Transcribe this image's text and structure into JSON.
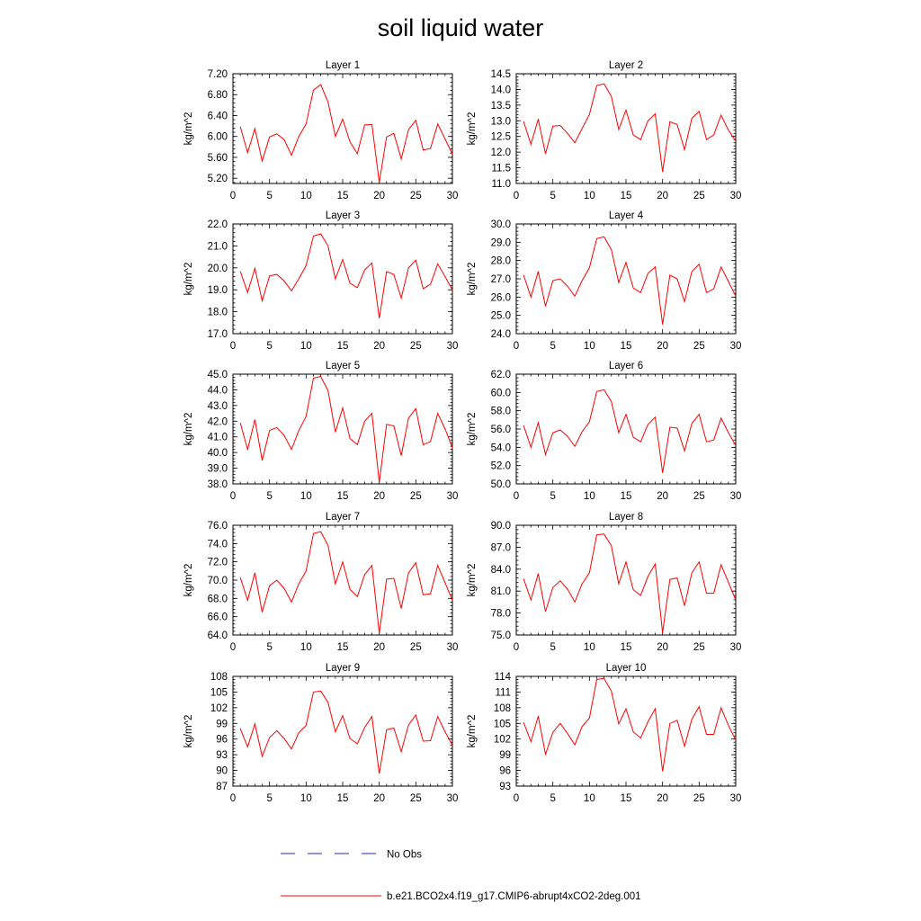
{
  "title": "soil liquid water",
  "legend": {
    "placement": "bottom-center",
    "obs_label": "No Obs",
    "obs_color": "#2a2aa0",
    "model_label": "b.e21.BCO2x4.f19_g17.CMIP6-abrupt4xCO2-2deg.001",
    "model_color": "#ff0000"
  },
  "chart_data": [
    {
      "type": "line",
      "title": "Layer 1",
      "ylabel": "kg/m^2",
      "xlim": [
        0,
        30
      ],
      "ylim": [
        5.1,
        7.2
      ],
      "yticks": [
        "5.20",
        "5.60",
        "6.00",
        "6.40",
        "6.80",
        "7.20"
      ],
      "ytick_values": [
        5.2,
        5.6,
        6.0,
        6.4,
        6.8,
        7.2
      ],
      "xticks": [
        "0",
        "5",
        "10",
        "15",
        "20",
        "25",
        "30"
      ],
      "xtick_values": [
        0,
        5,
        10,
        15,
        20,
        25,
        30
      ],
      "x": [
        1,
        2,
        3,
        4,
        5,
        6,
        7,
        8,
        9,
        10,
        11,
        12,
        13,
        14,
        15,
        16,
        17,
        18,
        19,
        20,
        21,
        22,
        23,
        24,
        25,
        26,
        27,
        28,
        29,
        30
      ],
      "series": [
        {
          "name": "b.e21.BCO2x4.f19_g17.CMIP6-abrupt4xCO2-2deg.001",
          "color": "#ff0000",
          "values": [
            6.19,
            5.69,
            6.15,
            5.53,
            5.99,
            6.05,
            5.94,
            5.64,
            6.0,
            6.24,
            6.89,
            6.99,
            6.66,
            6.0,
            6.33,
            5.9,
            5.67,
            6.22,
            6.23,
            5.12,
            5.99,
            6.06,
            5.57,
            6.13,
            6.31,
            5.74,
            5.77,
            6.24,
            5.95,
            5.66
          ]
        }
      ]
    },
    {
      "type": "line",
      "title": "Layer 2",
      "ylabel": "kg/m^2",
      "xlim": [
        0,
        30
      ],
      "ylim": [
        11.0,
        14.5
      ],
      "yticks": [
        "11.0",
        "11.5",
        "12.0",
        "12.5",
        "13.0",
        "13.5",
        "14.0",
        "14.5"
      ],
      "ytick_values": [
        11.0,
        11.5,
        12.0,
        12.5,
        13.0,
        13.5,
        14.0,
        14.5
      ],
      "xticks": [
        "0",
        "5",
        "10",
        "15",
        "20",
        "25",
        "30"
      ],
      "xtick_values": [
        0,
        5,
        10,
        15,
        20,
        25,
        30
      ],
      "x": [
        1,
        2,
        3,
        4,
        5,
        6,
        7,
        8,
        9,
        10,
        11,
        12,
        13,
        14,
        15,
        16,
        17,
        18,
        19,
        20,
        21,
        22,
        23,
        24,
        25,
        26,
        27,
        28,
        29,
        30
      ],
      "series": [
        {
          "name": "b.e21.BCO2x4.f19_g17.CMIP6-abrupt4xCO2-2deg.001",
          "color": "#ff0000",
          "values": [
            12.98,
            12.25,
            13.05,
            11.95,
            12.83,
            12.85,
            12.6,
            12.3,
            12.75,
            13.2,
            14.12,
            14.18,
            13.78,
            12.72,
            13.34,
            12.55,
            12.4,
            13.0,
            13.22,
            11.37,
            12.97,
            12.88,
            12.08,
            13.08,
            13.3,
            12.4,
            12.55,
            13.18,
            12.7,
            12.35
          ]
        }
      ]
    },
    {
      "type": "line",
      "title": "Layer 3",
      "ylabel": "kg/m^2",
      "xlim": [
        0,
        30
      ],
      "ylim": [
        17.0,
        22.0
      ],
      "yticks": [
        "17.0",
        "18.0",
        "19.0",
        "20.0",
        "21.0",
        "22.0"
      ],
      "ytick_values": [
        17,
        18,
        19,
        20,
        21,
        22
      ],
      "xticks": [
        "0",
        "5",
        "10",
        "15",
        "20",
        "25",
        "30"
      ],
      "xtick_values": [
        0,
        5,
        10,
        15,
        20,
        25,
        30
      ],
      "x": [
        1,
        2,
        3,
        4,
        5,
        6,
        7,
        8,
        9,
        10,
        11,
        12,
        13,
        14,
        15,
        16,
        17,
        18,
        19,
        20,
        21,
        22,
        23,
        24,
        25,
        26,
        27,
        28,
        29,
        30
      ],
      "series": [
        {
          "name": "b.e21.BCO2x4.f19_g17.CMIP6-abrupt4xCO2-2deg.001",
          "color": "#ff0000",
          "values": [
            19.85,
            18.88,
            19.98,
            18.5,
            19.63,
            19.7,
            19.4,
            18.95,
            19.5,
            20.1,
            21.45,
            21.55,
            21.0,
            19.5,
            20.38,
            19.3,
            19.1,
            19.9,
            20.22,
            17.7,
            19.83,
            19.7,
            18.62,
            20.0,
            20.35,
            19.05,
            19.25,
            20.18,
            19.6,
            19.0
          ]
        }
      ]
    },
    {
      "type": "line",
      "title": "Layer 4",
      "ylabel": "kg/m^2",
      "xlim": [
        0,
        30
      ],
      "ylim": [
        24.0,
        30.0
      ],
      "yticks": [
        "24.0",
        "25.0",
        "26.0",
        "27.0",
        "28.0",
        "29.0",
        "30.0"
      ],
      "ytick_values": [
        24,
        25,
        26,
        27,
        28,
        29,
        30
      ],
      "xticks": [
        "0",
        "5",
        "10",
        "15",
        "20",
        "25",
        "30"
      ],
      "xtick_values": [
        0,
        5,
        10,
        15,
        20,
        25,
        30
      ],
      "x": [
        1,
        2,
        3,
        4,
        5,
        6,
        7,
        8,
        9,
        10,
        11,
        12,
        13,
        14,
        15,
        16,
        17,
        18,
        19,
        20,
        21,
        22,
        23,
        24,
        25,
        26,
        27,
        28,
        29,
        30
      ],
      "series": [
        {
          "name": "b.e21.BCO2x4.f19_g17.CMIP6-abrupt4xCO2-2deg.001",
          "color": "#ff0000",
          "values": [
            27.2,
            26.0,
            27.4,
            25.5,
            26.9,
            27.0,
            26.6,
            26.05,
            26.9,
            27.6,
            29.2,
            29.3,
            28.6,
            26.8,
            27.9,
            26.5,
            26.25,
            27.3,
            27.65,
            24.5,
            27.2,
            27.0,
            25.75,
            27.4,
            27.8,
            26.25,
            26.45,
            27.65,
            26.85,
            26.05
          ]
        }
      ]
    },
    {
      "type": "line",
      "title": "Layer 5",
      "ylabel": "kg/m^2",
      "xlim": [
        0,
        30
      ],
      "ylim": [
        38.0,
        45.0
      ],
      "yticks": [
        "38.0",
        "39.0",
        "40.0",
        "41.0",
        "42.0",
        "43.0",
        "44.0",
        "45.0"
      ],
      "ytick_values": [
        38,
        39,
        40,
        41,
        42,
        43,
        44,
        45
      ],
      "xticks": [
        "0",
        "5",
        "10",
        "15",
        "20",
        "25",
        "30"
      ],
      "xtick_values": [
        0,
        5,
        10,
        15,
        20,
        25,
        30
      ],
      "x": [
        1,
        2,
        3,
        4,
        5,
        6,
        7,
        8,
        9,
        10,
        11,
        12,
        13,
        14,
        15,
        16,
        17,
        18,
        19,
        20,
        21,
        22,
        23,
        24,
        25,
        26,
        27,
        28,
        29,
        30
      ],
      "series": [
        {
          "name": "b.e21.BCO2x4.f19_g17.CMIP6-abrupt4xCO2-2deg.001",
          "color": "#ff0000",
          "values": [
            41.9,
            40.2,
            42.1,
            39.5,
            41.4,
            41.6,
            41.1,
            40.2,
            41.4,
            42.3,
            44.75,
            44.85,
            43.95,
            41.3,
            42.85,
            40.9,
            40.5,
            42.0,
            42.5,
            38.1,
            41.8,
            41.7,
            39.8,
            42.2,
            42.8,
            40.5,
            40.7,
            42.5,
            41.5,
            40.3
          ]
        }
      ]
    },
    {
      "type": "line",
      "title": "Layer 6",
      "ylabel": "kg/m^2",
      "xlim": [
        0,
        30
      ],
      "ylim": [
        50.0,
        62.0
      ],
      "yticks": [
        "50.0",
        "52.0",
        "54.0",
        "56.0",
        "58.0",
        "60.0",
        "62.0"
      ],
      "ytick_values": [
        50,
        52,
        54,
        56,
        58,
        60,
        62
      ],
      "xticks": [
        "0",
        "5",
        "10",
        "15",
        "20",
        "25",
        "30"
      ],
      "xtick_values": [
        0,
        5,
        10,
        15,
        20,
        25,
        30
      ],
      "x": [
        1,
        2,
        3,
        4,
        5,
        6,
        7,
        8,
        9,
        10,
        11,
        12,
        13,
        14,
        15,
        16,
        17,
        18,
        19,
        20,
        21,
        22,
        23,
        24,
        25,
        26,
        27,
        28,
        29,
        30
      ],
      "series": [
        {
          "name": "b.e21.BCO2x4.f19_g17.CMIP6-abrupt4xCO2-2deg.001",
          "color": "#ff0000",
          "values": [
            56.4,
            54.0,
            56.7,
            53.2,
            55.6,
            55.9,
            55.2,
            54.1,
            55.7,
            56.8,
            60.1,
            60.3,
            59.0,
            55.6,
            57.6,
            55.1,
            54.6,
            56.5,
            57.3,
            51.2,
            56.2,
            56.1,
            53.6,
            56.6,
            57.6,
            54.6,
            54.8,
            57.2,
            55.6,
            54.2
          ]
        }
      ]
    },
    {
      "type": "line",
      "title": "Layer 7",
      "ylabel": "kg/m^2",
      "xlim": [
        0,
        30
      ],
      "ylim": [
        64.0,
        76.0
      ],
      "yticks": [
        "64.0",
        "66.0",
        "68.0",
        "70.0",
        "72.0",
        "74.0",
        "76.0"
      ],
      "ytick_values": [
        64,
        66,
        68,
        70,
        72,
        74,
        76
      ],
      "xticks": [
        "0",
        "5",
        "10",
        "15",
        "20",
        "25",
        "30"
      ],
      "xtick_values": [
        0,
        5,
        10,
        15,
        20,
        25,
        30
      ],
      "x": [
        1,
        2,
        3,
        4,
        5,
        6,
        7,
        8,
        9,
        10,
        11,
        12,
        13,
        14,
        15,
        16,
        17,
        18,
        19,
        20,
        21,
        22,
        23,
        24,
        25,
        26,
        27,
        28,
        29,
        30
      ],
      "series": [
        {
          "name": "b.e21.BCO2x4.f19_g17.CMIP6-abrupt4xCO2-2deg.001",
          "color": "#ff0000",
          "values": [
            70.3,
            67.8,
            70.8,
            66.5,
            69.4,
            70.0,
            69.1,
            67.6,
            69.6,
            71.0,
            75.1,
            75.3,
            73.8,
            69.6,
            72.0,
            69.0,
            68.2,
            70.6,
            71.6,
            64.2,
            70.1,
            70.2,
            66.9,
            70.8,
            71.9,
            68.4,
            68.5,
            71.6,
            69.7,
            67.8
          ]
        }
      ]
    },
    {
      "type": "line",
      "title": "Layer 8",
      "ylabel": "kg/m^2",
      "xlim": [
        0,
        30
      ],
      "ylim": [
        75.0,
        90.0
      ],
      "yticks": [
        "75.0",
        "78.0",
        "81.0",
        "84.0",
        "87.0",
        "90.0"
      ],
      "ytick_values": [
        75,
        78,
        81,
        84,
        87,
        90
      ],
      "xticks": [
        "0",
        "5",
        "10",
        "15",
        "20",
        "25",
        "30"
      ],
      "xtick_values": [
        0,
        5,
        10,
        15,
        20,
        25,
        30
      ],
      "x": [
        1,
        2,
        3,
        4,
        5,
        6,
        7,
        8,
        9,
        10,
        11,
        12,
        13,
        14,
        15,
        16,
        17,
        18,
        19,
        20,
        21,
        22,
        23,
        24,
        25,
        26,
        27,
        28,
        29,
        30
      ],
      "series": [
        {
          "name": "b.e21.BCO2x4.f19_g17.CMIP6-abrupt4xCO2-2deg.001",
          "color": "#ff0000",
          "values": [
            82.7,
            79.8,
            83.4,
            78.2,
            81.5,
            82.4,
            81.3,
            79.5,
            82.0,
            83.5,
            88.7,
            88.8,
            87.2,
            82.0,
            85.0,
            81.2,
            80.4,
            83.0,
            84.7,
            75.3,
            82.6,
            82.8,
            79.0,
            83.5,
            85.0,
            80.7,
            80.7,
            84.6,
            82.2,
            79.8
          ]
        }
      ]
    },
    {
      "type": "line",
      "title": "Layer 9",
      "ylabel": "kg/m^2",
      "xlim": [
        0,
        30
      ],
      "ylim": [
        87,
        108
      ],
      "yticks": [
        "87",
        "90",
        "93",
        "96",
        "99",
        "102",
        "105",
        "108"
      ],
      "ytick_values": [
        87,
        90,
        93,
        96,
        99,
        102,
        105,
        108
      ],
      "xticks": [
        "0",
        "5",
        "10",
        "15",
        "20",
        "25",
        "30"
      ],
      "xtick_values": [
        0,
        5,
        10,
        15,
        20,
        25,
        30
      ],
      "x": [
        1,
        2,
        3,
        4,
        5,
        6,
        7,
        8,
        9,
        10,
        11,
        12,
        13,
        14,
        15,
        16,
        17,
        18,
        19,
        20,
        21,
        22,
        23,
        24,
        25,
        26,
        27,
        28,
        29,
        30
      ],
      "series": [
        {
          "name": "b.e21.BCO2x4.f19_g17.CMIP6-abrupt4xCO2-2deg.001",
          "color": "#ff0000",
          "values": [
            98.0,
            94.5,
            98.9,
            92.7,
            96.3,
            97.6,
            96.1,
            94.1,
            97.2,
            98.6,
            105.0,
            105.2,
            103.0,
            97.4,
            100.5,
            96.1,
            95.1,
            98.2,
            100.3,
            89.4,
            97.8,
            98.1,
            93.6,
            98.7,
            100.6,
            95.6,
            95.7,
            100.3,
            97.4,
            94.8
          ]
        }
      ]
    },
    {
      "type": "line",
      "title": "Layer 10",
      "ylabel": "kg/m^2",
      "xlim": [
        0,
        30
      ],
      "ylim": [
        93,
        114
      ],
      "yticks": [
        "93",
        "96",
        "99",
        "102",
        "105",
        "108",
        "111",
        "114"
      ],
      "ytick_values": [
        93,
        96,
        99,
        102,
        105,
        108,
        111,
        114
      ],
      "xticks": [
        "0",
        "5",
        "10",
        "15",
        "20",
        "25",
        "30"
      ],
      "xtick_values": [
        0,
        5,
        10,
        15,
        20,
        25,
        30
      ],
      "x": [
        1,
        2,
        3,
        4,
        5,
        6,
        7,
        8,
        9,
        10,
        11,
        12,
        13,
        14,
        15,
        16,
        17,
        18,
        19,
        20,
        21,
        22,
        23,
        24,
        25,
        26,
        27,
        28,
        29,
        30
      ],
      "series": [
        {
          "name": "b.e21.BCO2x4.f19_g17.CMIP6-abrupt4xCO2-2deg.001",
          "color": "#ff0000",
          "values": [
            105.2,
            101.5,
            106.4,
            99.1,
            103.3,
            105.0,
            103.1,
            100.9,
            104.4,
            106.0,
            113.4,
            113.6,
            111.2,
            104.9,
            107.8,
            103.4,
            102.2,
            105.3,
            107.8,
            95.8,
            105.0,
            105.6,
            100.6,
            105.8,
            108.2,
            102.9,
            102.9,
            108.0,
            104.6,
            101.8
          ]
        }
      ]
    }
  ]
}
